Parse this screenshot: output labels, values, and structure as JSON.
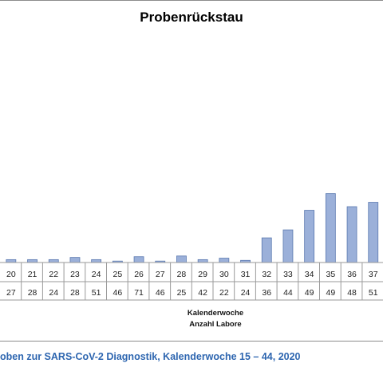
{
  "chart_data": {
    "type": "bar",
    "title": "Probenrückstau",
    "xlabel": "Kalenderwoche",
    "row2_label": "Anzahl Labore",
    "categories": [
      "20",
      "21",
      "22",
      "23",
      "24",
      "25",
      "26",
      "27",
      "28",
      "29",
      "30",
      "31",
      "32",
      "33",
      "34",
      "35",
      "36",
      "37"
    ],
    "labs": [
      "27",
      "28",
      "24",
      "28",
      "51",
      "46",
      "71",
      "46",
      "25",
      "42",
      "22",
      "24",
      "36",
      "44",
      "49",
      "49",
      "48",
      "51"
    ],
    "values": [
      400,
      400,
      400,
      700,
      400,
      200,
      800,
      200,
      900,
      400,
      600,
      300,
      3400,
      4500,
      7200,
      9500,
      7700,
      8300
    ],
    "ylim": [
      0,
      25000
    ],
    "grid": false,
    "bar_color": "#9bb0d9",
    "bar_border": "#5b79b0"
  },
  "caption": "oben zur SARS-CoV-2 Diagnostik, Kalenderwoche 15 – 44, 2020"
}
